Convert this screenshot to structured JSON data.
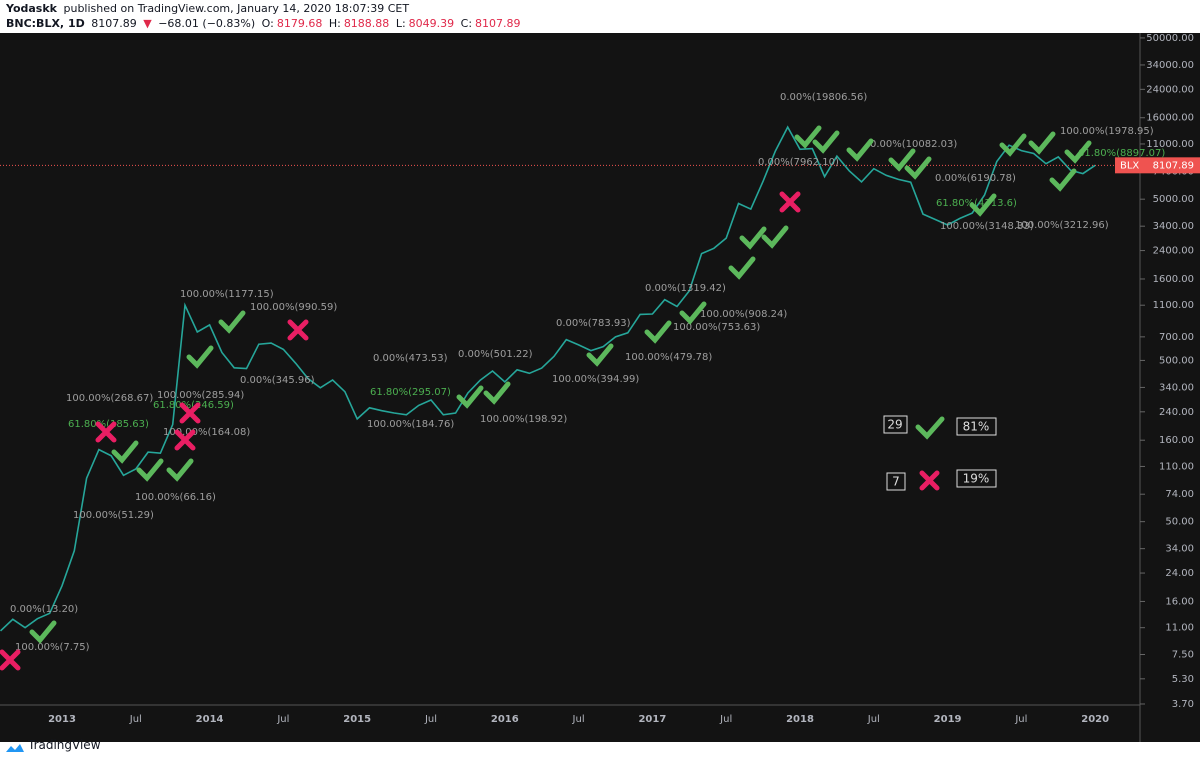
{
  "header": {
    "author": "Yodaskk",
    "published": " published on TradingView.com, January 14, 2020 18:07:39 CET",
    "symbol": "BNC:BLX, 1D",
    "last": "8107.89",
    "arrow": "▼",
    "change": "−68.01 (−0.83%)",
    "open_label": "O:",
    "open": "8179.68",
    "high_label": "H:",
    "high": "8188.88",
    "low_label": "L:",
    "low": "8049.39",
    "close_label": "C:",
    "close": "8107.89"
  },
  "stats": {
    "wins": "29",
    "win_pct": "81%",
    "losses": "7",
    "loss_pct": "19%"
  },
  "footer": "TradingView",
  "chart_data": {
    "type": "line",
    "log_scale": true,
    "color": "#26a69a",
    "last_price": {
      "symbol": "BLX",
      "value": 8107.89,
      "label": "8107.89",
      "color": "#ef5350"
    },
    "categories": [
      null,
      null,
      null,
      null,
      null,
      "2013",
      null,
      null,
      null,
      null,
      null,
      "Jul",
      null,
      null,
      null,
      null,
      null,
      "2014",
      null,
      null,
      null,
      null,
      null,
      "Jul",
      null,
      null,
      null,
      null,
      null,
      "2015",
      null,
      null,
      null,
      null,
      null,
      "Jul",
      null,
      null,
      null,
      null,
      null,
      "2016",
      null,
      null,
      null,
      null,
      null,
      "Jul",
      null,
      null,
      null,
      null,
      null,
      "2017",
      null,
      null,
      null,
      null,
      null,
      "Jul",
      null,
      null,
      null,
      null,
      null,
      "2018",
      null,
      null,
      null,
      null,
      null,
      "Jul",
      null,
      null,
      null,
      null,
      null,
      "2019",
      null,
      null,
      null,
      null,
      null,
      "Jul",
      null,
      null,
      null,
      null,
      null,
      "2020"
    ],
    "series": [
      {
        "name": "BLX",
        "color": "#26a69a",
        "values": [
          10.5,
          12.4,
          11,
          12.5,
          13.5,
          20,
          33,
          93,
          140,
          128,
          97,
          106,
          135,
          133,
          200,
          1100,
          750,
          830,
          560,
          450,
          445,
          630,
          640,
          585,
          480,
          386,
          338,
          378,
          320,
          217,
          254,
          244,
          236,
          230,
          263,
          284,
          230,
          236,
          314,
          377,
          430,
          368,
          437,
          416,
          448,
          530,
          673,
          624,
          575,
          609,
          700,
          742,
          964,
          970,
          1190,
          1080,
          1350,
          2300,
          2480,
          2870,
          4700,
          4340,
          6460,
          9950,
          14000,
          10200,
          10300,
          6900,
          9250,
          7500,
          6400,
          7730,
          7030,
          6630,
          6370,
          4040,
          3740,
          3460,
          3800,
          4100,
          5300,
          8560,
          10800,
          10000,
          9600,
          8300,
          9150,
          7550,
          7200,
          8108
        ]
      }
    ],
    "ylim": [
      2.15,
      56000
    ],
    "yticks": [
      {
        "value": 3.7,
        "label": "3.70"
      },
      {
        "value": 5.3,
        "label": "5.30"
      },
      {
        "value": 7.5,
        "label": "7.50"
      },
      {
        "value": 11,
        "label": "11.00"
      },
      {
        "value": 16,
        "label": "16.00"
      },
      {
        "value": 24,
        "label": "24.00"
      },
      {
        "value": 34,
        "label": "34.00"
      },
      {
        "value": 50,
        "label": "50.00"
      },
      {
        "value": 74,
        "label": "74.00"
      },
      {
        "value": 110,
        "label": "110.00"
      },
      {
        "value": 160,
        "label": "160.00"
      },
      {
        "value": 240,
        "label": "240.00"
      },
      {
        "value": 340,
        "label": "340.00"
      },
      {
        "value": 500,
        "label": "500.00"
      },
      {
        "value": 700,
        "label": "700.00"
      },
      {
        "value": 1100,
        "label": "1100.00"
      },
      {
        "value": 1600,
        "label": "1600.00"
      },
      {
        "value": 2400,
        "label": "2400.00"
      },
      {
        "value": 3400,
        "label": "3400.00"
      },
      {
        "value": 5000,
        "label": "5000.00"
      },
      {
        "value": 7400,
        "label": "7400.00"
      },
      {
        "value": 11000,
        "label": "11000.00"
      },
      {
        "value": 16000,
        "label": "16000.00"
      },
      {
        "value": 24000,
        "label": "24000.00"
      },
      {
        "value": 34000,
        "label": "34000.00"
      },
      {
        "value": 50000,
        "label": "50000.00"
      }
    ],
    "fib_levels": {
      "color": "#9e9e9e",
      "labels": [
        "100.00%(268.67)",
        "100.00%(1177.15)",
        "100.00%(990.59)",
        "0.00%(345.96)",
        "100.00%(285.94)",
        "100.00%(164.08)",
        "100.00%(51.29)",
        "100.00%(66.16)",
        "0.00%(13.20)",
        "100.00%(7.75)",
        "0.00%(473.53)",
        "100.00%(184.76)",
        "0.00%(501.22)",
        "100.00%(198.92)",
        "0.00%(783.93)",
        "100.00%(394.99)",
        "0.00%(1319.42)",
        "100.00%(479.78)",
        "100.00%(753.63)",
        "100.00%(908.24)",
        "0.00%(19806.56)",
        "0.00%(7962.10)",
        "0.00%(10082.03)",
        "0.00%(6190.78)",
        "100.00%(3148.33)",
        "100.00%(3212.96)",
        "100.00%(1978.95)"
      ]
    },
    "fib_retracements": {
      "color": "#4caf50",
      "labels": [
        "61.80%(185.63)",
        "61.80%(246.59)",
        "61.80%(295.07)",
        "61.80%(4313.6)",
        "61.80%(8897.07)"
      ]
    }
  }
}
